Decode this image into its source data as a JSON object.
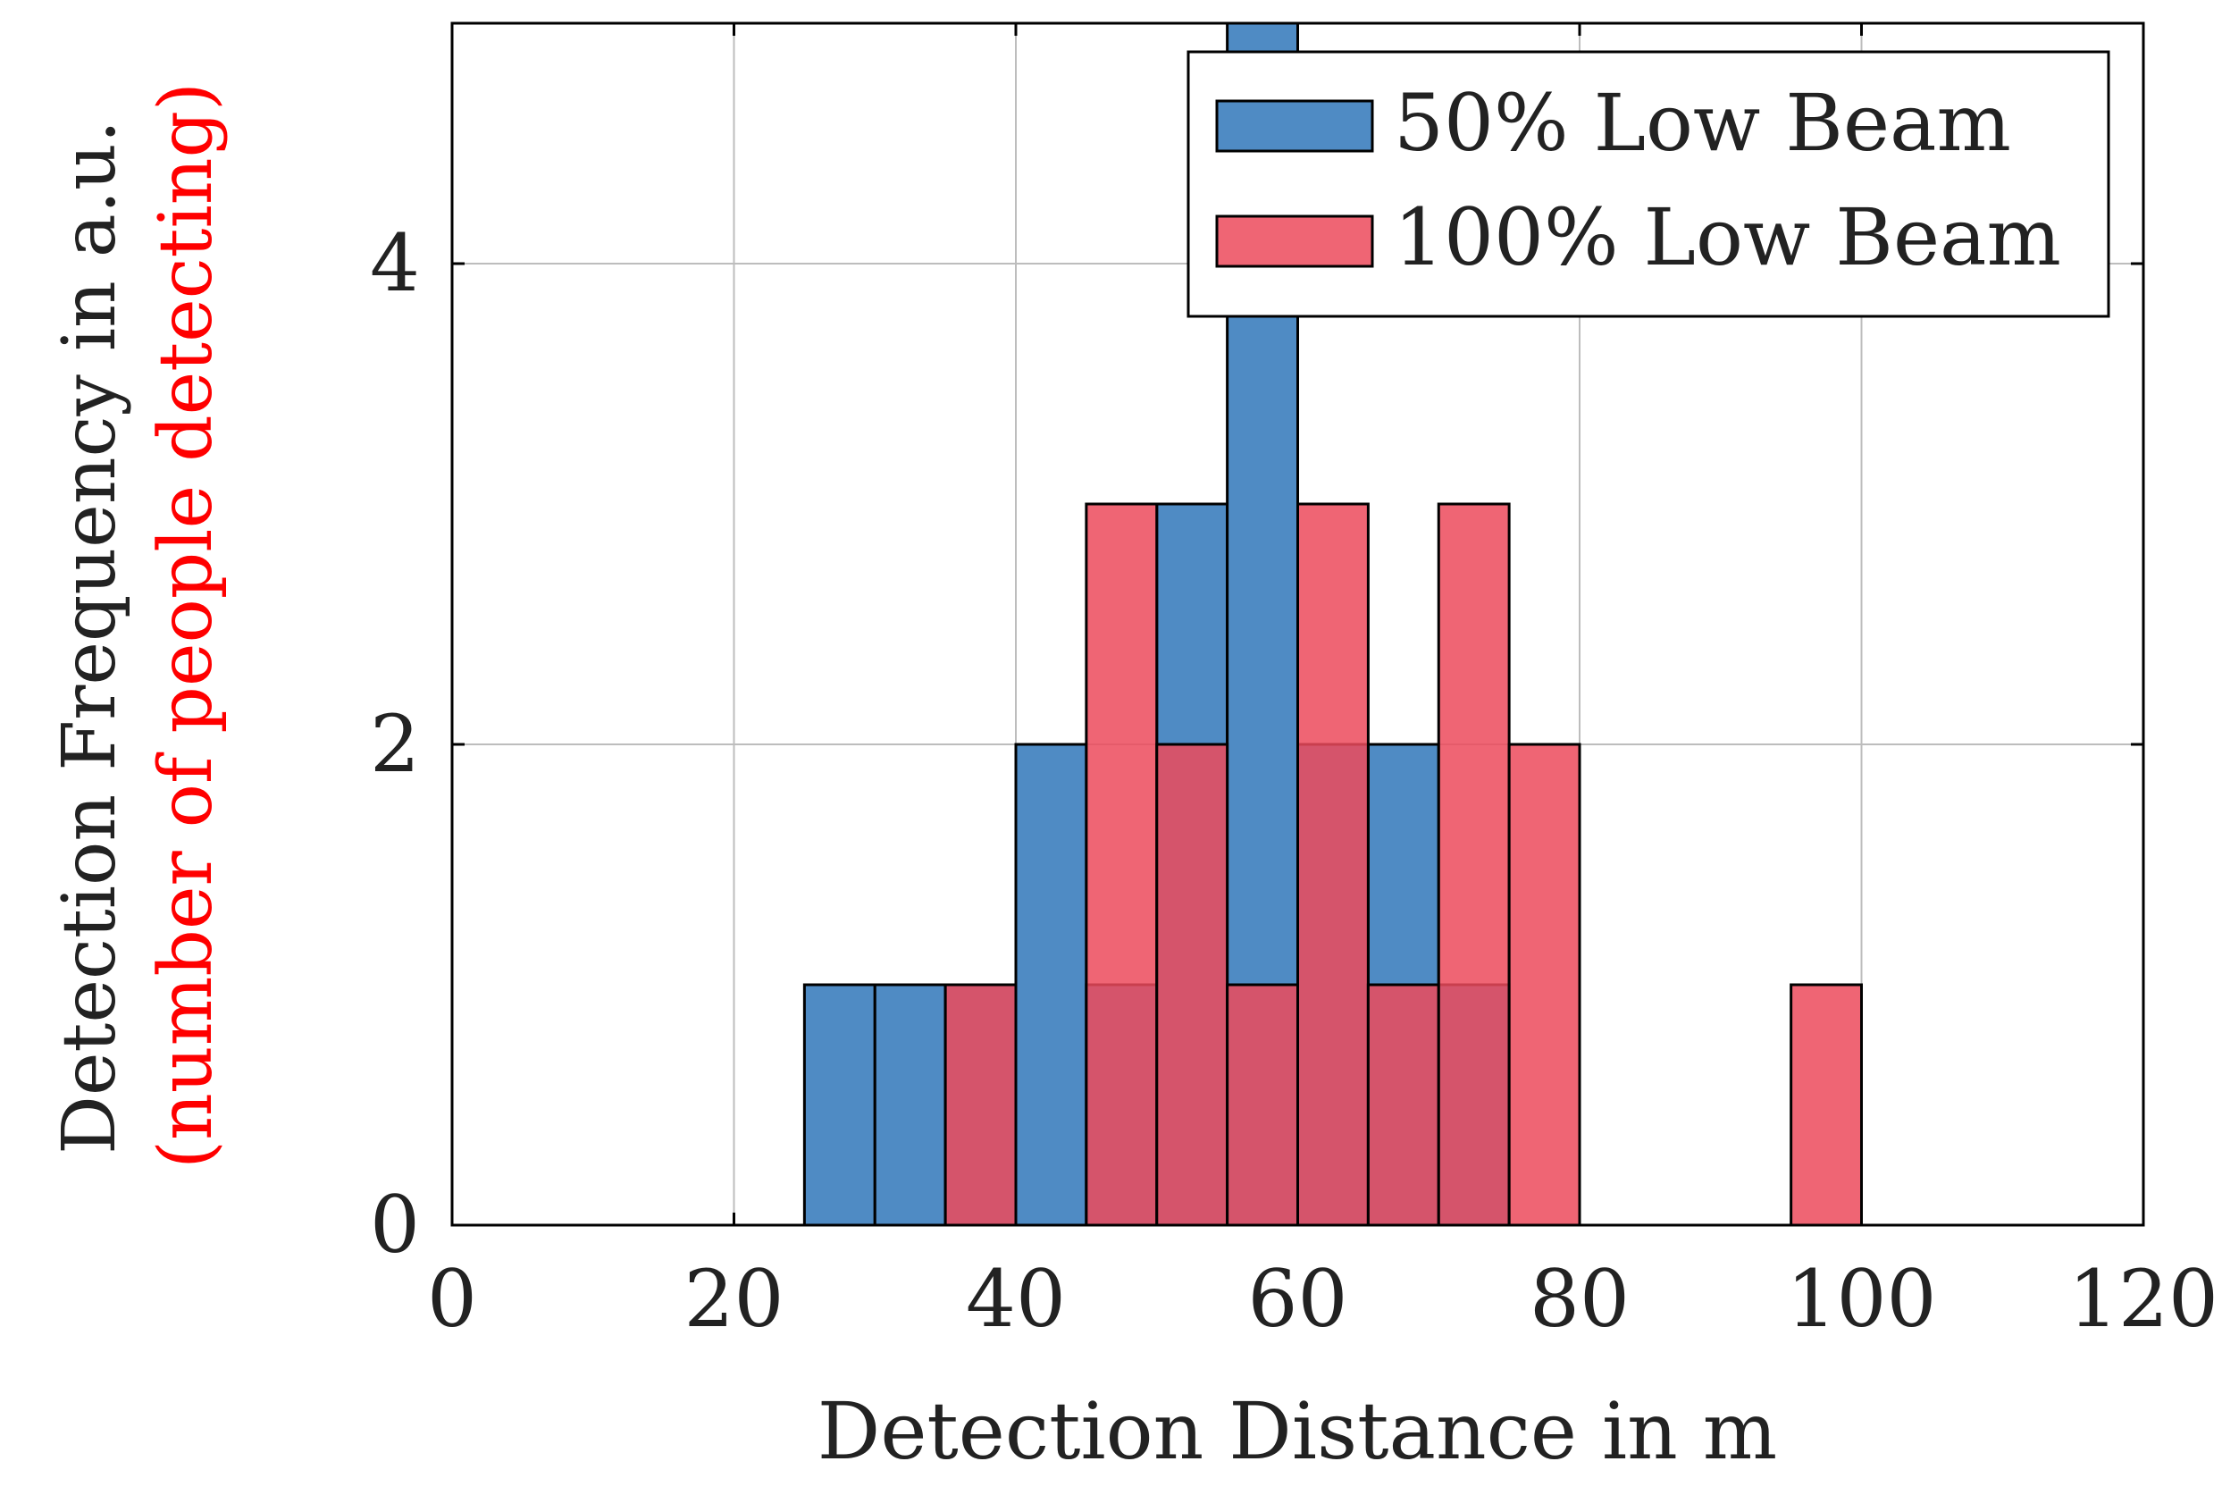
{
  "chart_data": {
    "type": "histogram",
    "bin_width": 5,
    "xlim": [
      0,
      120
    ],
    "ylim": [
      0,
      5
    ],
    "xticks": [
      0,
      20,
      40,
      60,
      80,
      100,
      120
    ],
    "yticks": [
      0,
      2,
      4
    ],
    "grid": true,
    "xlabel": "Detection Distance in m",
    "ylabel_line1": "Detection Frequency in a.u.",
    "ylabel_line2": "(number of people detecting)",
    "legend_position": "top-right",
    "series": [
      {
        "name": "50% Low Beam",
        "color": "#4f8bc4",
        "bins": [
          {
            "start": 25,
            "end": 30,
            "count": 1
          },
          {
            "start": 30,
            "end": 35,
            "count": 1
          },
          {
            "start": 35,
            "end": 40,
            "count": 1
          },
          {
            "start": 40,
            "end": 45,
            "count": 2
          },
          {
            "start": 45,
            "end": 50,
            "count": 1
          },
          {
            "start": 50,
            "end": 55,
            "count": 3
          },
          {
            "start": 55,
            "end": 60,
            "count": 5
          },
          {
            "start": 60,
            "end": 65,
            "count": 2
          },
          {
            "start": 65,
            "end": 70,
            "count": 2
          },
          {
            "start": 70,
            "end": 75,
            "count": 1
          }
        ]
      },
      {
        "name": "100% Low Beam",
        "color": "#ec4a5c",
        "bins": [
          {
            "start": 35,
            "end": 40,
            "count": 1
          },
          {
            "start": 45,
            "end": 50,
            "count": 3
          },
          {
            "start": 50,
            "end": 55,
            "count": 2
          },
          {
            "start": 55,
            "end": 60,
            "count": 1
          },
          {
            "start": 60,
            "end": 65,
            "count": 3
          },
          {
            "start": 65,
            "end": 70,
            "count": 1
          },
          {
            "start": 70,
            "end": 75,
            "count": 3
          },
          {
            "start": 75,
            "end": 80,
            "count": 2
          },
          {
            "start": 95,
            "end": 100,
            "count": 1
          }
        ]
      }
    ]
  },
  "colors": {
    "ylabel_line1": "#222222",
    "ylabel_line2": "#ff0000",
    "grid": "#bdbdbd",
    "axis": "#000000"
  }
}
